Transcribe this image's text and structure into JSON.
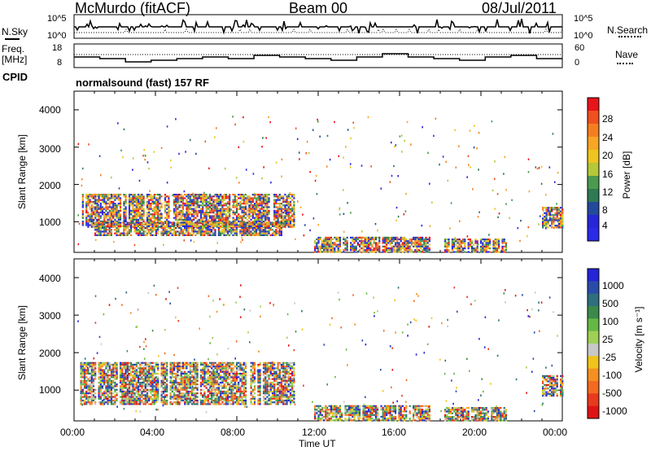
{
  "header": {
    "station": "McMurdo (fitACF)",
    "beam": "Beam 00",
    "date": "08/Jul/2011"
  },
  "top_panels": {
    "nsky_label": "N.Sky",
    "nsky_ticks": [
      "10^5",
      "10^0"
    ],
    "nsearch_label": "N.Search",
    "nsearch_ticks": [
      "10^5",
      "10^0"
    ],
    "freq_label_1": "Freq.",
    "freq_label_2": "[MHz]",
    "freq_ticks": [
      "18",
      "8"
    ],
    "nave_label": "Nave",
    "nave_ticks": [
      "60",
      "0"
    ],
    "cpid_label": "CPID",
    "cpid_text": "normalsound (fast) 157 RF"
  },
  "power_panel": {
    "ylabel": "Slant Range [km]",
    "yticks": [
      "4000",
      "3000",
      "2000",
      "1000"
    ],
    "colorbar_label": "Power [dB]",
    "colorbar_ticks": [
      "28",
      "24",
      "20",
      "16",
      "12",
      "8",
      "4"
    ],
    "colorbar_colors": [
      "#e8141a",
      "#f0501e",
      "#f57f20",
      "#f8a623",
      "#eec51e",
      "#b4c838",
      "#4b9a4e",
      "#2e7a52",
      "#244a9c",
      "#2626d8",
      "#2a2ae8"
    ]
  },
  "velocity_panel": {
    "ylabel": "Slant Range [km]",
    "yticks": [
      "4000",
      "3000",
      "2000",
      "1000"
    ],
    "colorbar_label": "Velocity [m s⁻¹]",
    "colorbar_ticks": [
      "1000",
      "500",
      "100",
      "25",
      "-25",
      "-100",
      "-500",
      "-1000"
    ],
    "colorbar_colors": [
      "#2424d8",
      "#2a4ca8",
      "#2f6e7c",
      "#3a8a4c",
      "#66b845",
      "#a0d056",
      "#c8c8c8",
      "#f0c41a",
      "#f59020",
      "#f46a22",
      "#e83a1c",
      "#e01414"
    ]
  },
  "xaxis": {
    "ticks": [
      "00:00",
      "04:00",
      "08:00",
      "12:00",
      "16:00",
      "20:00",
      "00:00"
    ],
    "label": "Time UT"
  },
  "chart_data": [
    {
      "type": "heatmap",
      "title": "Power [dB]",
      "xlabel": "Time UT",
      "ylabel": "Slant Range [km]",
      "xlim_hours": [
        0,
        24
      ],
      "ylim": [
        180,
        4500
      ],
      "clim": [
        0,
        30
      ],
      "regions": [
        {
          "t0": 0.3,
          "t1": 10.8,
          "r0": 850,
          "r1": 1750,
          "value_range": [
            8,
            28
          ],
          "description_color": "mixed orange/red core"
        },
        {
          "t0": 1.0,
          "t1": 10.2,
          "r0": 650,
          "r1": 1000,
          "value_range": [
            16,
            28
          ]
        },
        {
          "t0": 11.8,
          "t1": 17.5,
          "r0": 180,
          "r1": 600,
          "value_range": [
            12,
            28
          ]
        },
        {
          "t0": 18.2,
          "t1": 21.2,
          "r0": 200,
          "r1": 550,
          "value_range": [
            8,
            20
          ]
        },
        {
          "t0": 23.0,
          "t1": 24.0,
          "r0": 850,
          "r1": 1400,
          "value_range": [
            4,
            12
          ]
        }
      ]
    },
    {
      "type": "heatmap",
      "title": "Velocity [m s⁻¹]",
      "xlabel": "Time UT",
      "ylabel": "Slant Range [km]",
      "xlim_hours": [
        0,
        24
      ],
      "ylim": [
        180,
        4500
      ],
      "clim": [
        -1000,
        1000
      ],
      "regions": [
        {
          "t0": 0.3,
          "t1": 10.8,
          "r0": 650,
          "r1": 1750,
          "value_range": [
            -100,
            100
          ]
        },
        {
          "t0": 11.8,
          "t1": 17.5,
          "r0": 180,
          "r1": 600,
          "value_range": [
            -500,
            500
          ]
        },
        {
          "t0": 18.2,
          "t1": 21.2,
          "r0": 200,
          "r1": 550,
          "value_range": [
            -500,
            -100
          ]
        },
        {
          "t0": 23.0,
          "t1": 24.0,
          "r0": 850,
          "r1": 1400,
          "value_range": [
            -100,
            100
          ]
        }
      ]
    }
  ]
}
